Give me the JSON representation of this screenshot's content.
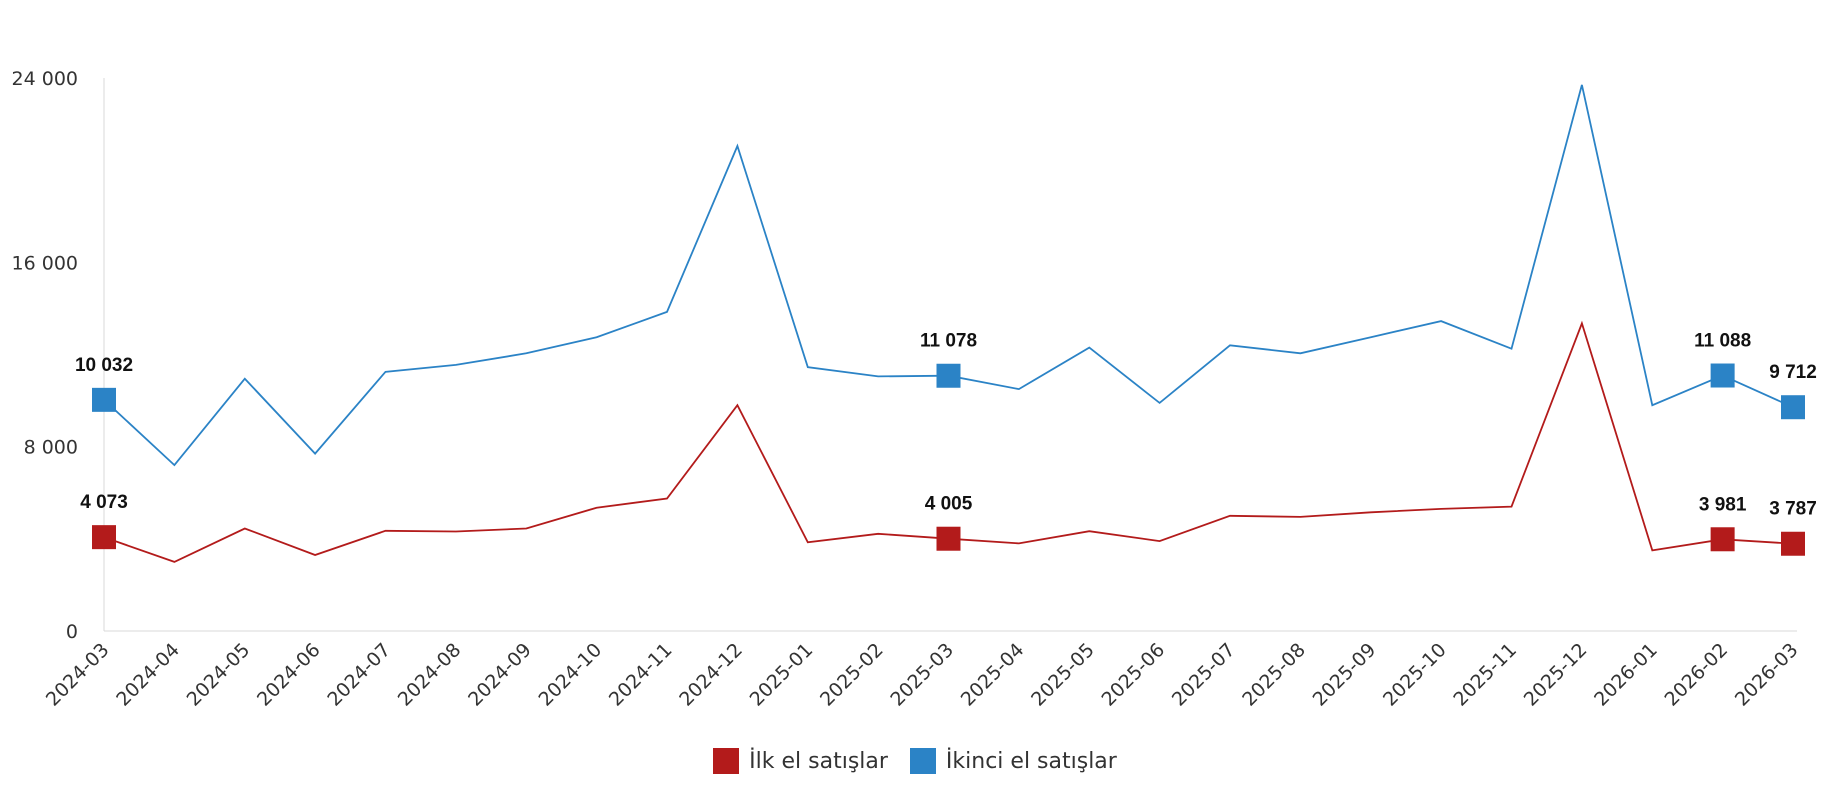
{
  "chart_data": {
    "type": "line",
    "title": "",
    "xlabel": "",
    "ylabel": "",
    "ylim": [
      0,
      24000
    ],
    "yticks": [
      "0",
      "8 000",
      "16 000",
      "24 000"
    ],
    "ytick_values": [
      0,
      8000,
      16000,
      24000
    ],
    "categories": [
      "2024-03",
      "2024-04",
      "2024-05",
      "2024-06",
      "2024-07",
      "2024-08",
      "2024-09",
      "2024-10",
      "2024-11",
      "2024-12",
      "2025-01",
      "2025-02",
      "2025-03",
      "2025-04",
      "2025-05",
      "2025-06",
      "2025-07",
      "2025-08",
      "2025-09",
      "2025-10",
      "2025-11",
      "2025-12",
      "2026-01",
      "2026-02",
      "2026-03"
    ],
    "series": [
      {
        "name": "İlk el satışlar",
        "color": "#b31b1b",
        "values": [
          4073,
          3000,
          4450,
          3300,
          4350,
          4320,
          4450,
          5350,
          5750,
          9800,
          3850,
          4220,
          4005,
          3800,
          4330,
          3900,
          5000,
          4950,
          5150,
          5300,
          5400,
          13350,
          3500,
          3981,
          3787
        ],
        "labels": [
          {
            "index": 0,
            "text": "4 073"
          },
          {
            "index": 12,
            "text": "4 005"
          },
          {
            "index": 23,
            "text": "3 981"
          },
          {
            "index": 24,
            "text": "3 787"
          }
        ]
      },
      {
        "name": "İkinci el satışlar",
        "color": "#2b83c6",
        "values": [
          10032,
          7200,
          10950,
          7700,
          11250,
          11550,
          12050,
          12750,
          13850,
          21050,
          11450,
          11050,
          11078,
          10500,
          12300,
          9900,
          12400,
          12050,
          12750,
          13450,
          12250,
          23700,
          9800,
          11088,
          9712
        ],
        "labels": [
          {
            "index": 0,
            "text": "10 032"
          },
          {
            "index": 12,
            "text": "11 078"
          },
          {
            "index": 23,
            "text": "11 088"
          },
          {
            "index": 24,
            "text": "9 712"
          }
        ]
      }
    ],
    "legend_position": "bottom",
    "grid": false
  }
}
